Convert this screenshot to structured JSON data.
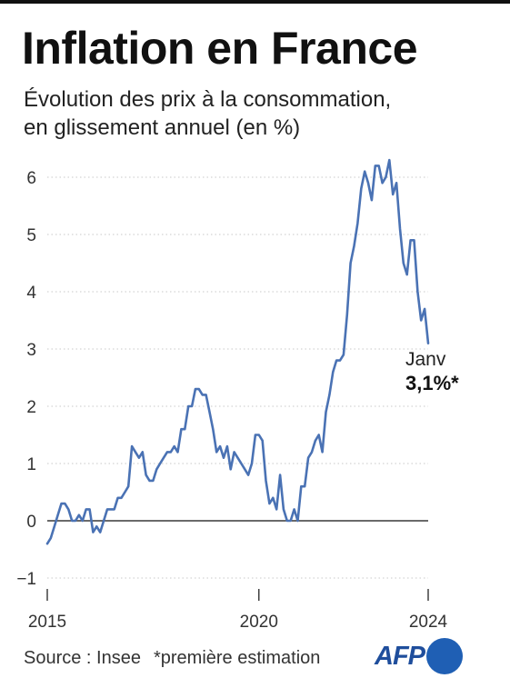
{
  "title": "Inflation en France",
  "subtitle": [
    "Évolution des prix à la consommation,",
    "en glissement annuel (en %)"
  ],
  "source": "Source : Insee",
  "note": "*première estimation",
  "logo": "AFP",
  "colors": {
    "line": "#4a72b4",
    "text": "#222222",
    "grid": "#c8c8c8",
    "logo": "#1f5fb4"
  },
  "chart_data": {
    "type": "line",
    "title": "Inflation en France",
    "subtitle": "Évolution des prix à la consommation, en glissement annuel (en %)",
    "xlabel": "",
    "ylabel": "",
    "ylim": [
      -1,
      6.5
    ],
    "yticks": [
      -1,
      0,
      1,
      2,
      3,
      4,
      5,
      6
    ],
    "ytick_labels": [
      "−1",
      "0",
      "1",
      "2",
      "3",
      "4",
      "5",
      "6"
    ],
    "xticks": [
      "2015",
      "2020",
      "2024"
    ],
    "grid": "horizontal dotted",
    "start_month": "2015-01",
    "series": [
      {
        "values": [
          -0.4,
          -0.3,
          -0.1,
          0.1,
          0.3,
          0.3,
          0.2,
          0.0,
          0.0,
          0.1,
          0.0,
          0.2,
          0.2,
          -0.2,
          -0.1,
          -0.2,
          0.0,
          0.2,
          0.2,
          0.2,
          0.4,
          0.4,
          0.5,
          0.6,
          1.3,
          1.2,
          1.1,
          1.2,
          0.8,
          0.7,
          0.7,
          0.9,
          1.0,
          1.1,
          1.2,
          1.2,
          1.3,
          1.2,
          1.6,
          1.6,
          2.0,
          2.0,
          2.3,
          2.3,
          2.2,
          2.2,
          1.9,
          1.6,
          1.2,
          1.3,
          1.1,
          1.3,
          0.9,
          1.2,
          1.1,
          1.0,
          0.9,
          0.8,
          1.0,
          1.5,
          1.5,
          1.4,
          0.7,
          0.3,
          0.4,
          0.2,
          0.8,
          0.2,
          0.0,
          0.0,
          0.2,
          0.0,
          0.6,
          0.6,
          1.1,
          1.2,
          1.4,
          1.5,
          1.2,
          1.9,
          2.2,
          2.6,
          2.8,
          2.8,
          2.9,
          3.6,
          4.5,
          4.8,
          5.2,
          5.8,
          6.1,
          5.9,
          5.6,
          6.2,
          6.2,
          5.9,
          6.0,
          6.3,
          5.7,
          5.9,
          5.1,
          4.5,
          4.3,
          4.9,
          4.9,
          4.0,
          3.5,
          3.7,
          3.1
        ],
        "annotation": {
          "month": "Janv",
          "value_label": "3,1%*"
        }
      }
    ]
  }
}
